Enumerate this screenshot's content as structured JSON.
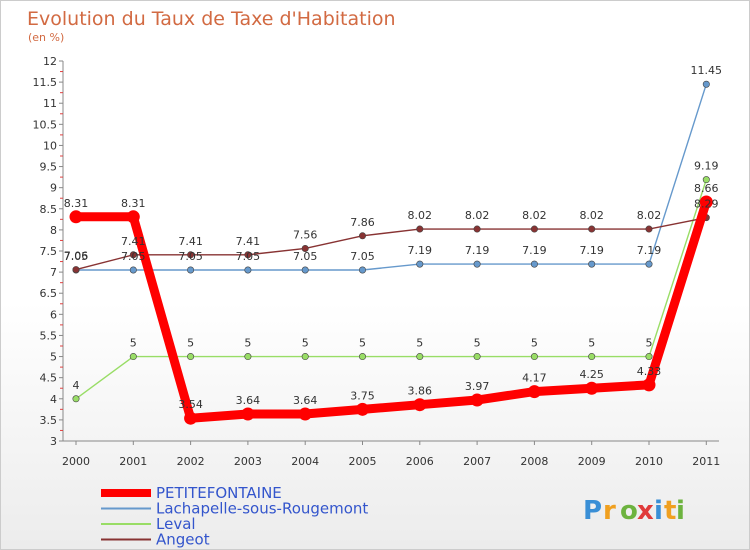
{
  "header": {
    "title": "Evolution du Taux de Taxe d'Habitation",
    "subtitle": "(en %)"
  },
  "logo": {
    "text": "Proxiti",
    "letter_colors": [
      "#3a8fd6",
      "#f0a020",
      "#6db33f",
      "#e03a3a",
      "#3a8fd6",
      "#f0a020",
      "#6db33f"
    ]
  },
  "chart_data": {
    "type": "line",
    "title": "Evolution du Taux de Taxe d'Habitation",
    "subtitle": "(en %)",
    "x": [
      "2000",
      "2001",
      "2002",
      "2003",
      "2004",
      "2005",
      "2006",
      "2007",
      "2008",
      "2009",
      "2010",
      "2011"
    ],
    "ylim": [
      3,
      12
    ],
    "yticks": [
      "3",
      "3.5",
      "4",
      "4.5",
      "5",
      "5.5",
      "6",
      "6.5",
      "7",
      "7.5",
      "8",
      "8.5",
      "9",
      "9.5",
      "10",
      "10.5",
      "11",
      "11.5",
      "12"
    ],
    "grid": false,
    "legend_position": "bottom-left",
    "series": [
      {
        "name": "PETITEFONTAINE",
        "color": "#ff0000",
        "emphasis": true,
        "values": [
          8.31,
          8.31,
          3.54,
          3.64,
          3.64,
          3.75,
          3.86,
          3.97,
          4.17,
          4.25,
          4.33,
          8.66
        ],
        "labels": [
          "8.31",
          "8.31",
          "3.54",
          "3.64",
          "3.64",
          "3.75",
          "3.86",
          "3.97",
          "4.17",
          "4.25",
          "4.33",
          "8.66"
        ]
      },
      {
        "name": "Lachapelle-sous-Rougemont",
        "color": "#6699cc",
        "values": [
          7.05,
          7.05,
          7.05,
          7.05,
          7.05,
          7.05,
          7.19,
          7.19,
          7.19,
          7.19,
          7.19,
          11.45
        ],
        "labels": [
          "7.05",
          "7.05",
          "7.05",
          "7.05",
          "7.05",
          "7.05",
          "7.19",
          "7.19",
          "7.19",
          "7.19",
          "7.19",
          "11.45"
        ]
      },
      {
        "name": "Leval",
        "color": "#99dd66",
        "values": [
          4,
          5,
          5,
          5,
          5,
          5,
          5,
          5,
          5,
          5,
          5,
          9.19
        ],
        "labels": [
          "4",
          "5",
          "5",
          "5",
          "5",
          "5",
          "5",
          "5",
          "5",
          "5",
          "5",
          "9.19"
        ]
      },
      {
        "name": "Angeot",
        "color": "#883333",
        "values": [
          7.06,
          7.41,
          7.41,
          7.41,
          7.56,
          7.86,
          8.02,
          8.02,
          8.02,
          8.02,
          8.02,
          8.29
        ],
        "labels": [
          "7.06",
          "7.41",
          "7.41",
          "7.41",
          "7.56",
          "7.86",
          "8.02",
          "8.02",
          "8.02",
          "8.02",
          "8.02",
          "8.29"
        ]
      }
    ]
  }
}
